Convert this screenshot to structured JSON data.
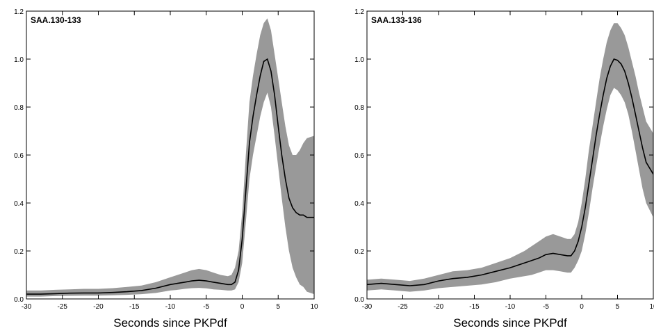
{
  "chart_data": [
    {
      "type": "line",
      "title": "SAA.130-133",
      "xlabel": "Seconds since PKPdf",
      "ylabel": "",
      "xlim": [
        -30,
        10
      ],
      "ylim": [
        0,
        1.2
      ],
      "xticks": [
        -30,
        -25,
        -20,
        -15,
        -10,
        -5,
        0,
        5,
        10
      ],
      "xtick_labels": [
        "-30",
        "-25",
        "-20",
        "-15",
        "-10",
        "-5",
        "0",
        "5",
        "10"
      ],
      "yticks": [
        0,
        0.2,
        0.4,
        0.6,
        0.8,
        1.0,
        1.2
      ],
      "ytick_labels": [
        "0.0",
        "0.2",
        "0.4",
        "0.6",
        "0.8",
        "1.0",
        "1.2"
      ],
      "grid": false,
      "colors": {
        "line": "#000000",
        "band": "#999999"
      },
      "series": [
        {
          "x": [
            -30,
            -28,
            -26,
            -24,
            -22,
            -20,
            -18,
            -16,
            -14,
            -12,
            -10,
            -9,
            -8,
            -7,
            -6,
            -5,
            -4,
            -3,
            -2,
            -1.5,
            -1,
            -0.5,
            0,
            0.5,
            1,
            1.5,
            2,
            2.5,
            3,
            3.5,
            4,
            4.5,
            5,
            5.5,
            6,
            6.5,
            7,
            7.5,
            8,
            8.5,
            9,
            10
          ],
          "y": [
            0.02,
            0.02,
            0.022,
            0.024,
            0.025,
            0.025,
            0.027,
            0.03,
            0.035,
            0.045,
            0.06,
            0.065,
            0.07,
            0.075,
            0.078,
            0.075,
            0.07,
            0.065,
            0.06,
            0.06,
            0.07,
            0.12,
            0.25,
            0.45,
            0.65,
            0.76,
            0.85,
            0.93,
            0.99,
            1.0,
            0.95,
            0.85,
            0.72,
            0.6,
            0.5,
            0.42,
            0.38,
            0.36,
            0.35,
            0.35,
            0.34,
            0.34
          ],
          "lower": [
            0.01,
            0.01,
            0.012,
            0.013,
            0.014,
            0.014,
            0.015,
            0.017,
            0.02,
            0.025,
            0.035,
            0.038,
            0.042,
            0.045,
            0.046,
            0.044,
            0.04,
            0.038,
            0.035,
            0.035,
            0.04,
            0.07,
            0.15,
            0.32,
            0.5,
            0.6,
            0.68,
            0.76,
            0.82,
            0.86,
            0.8,
            0.68,
            0.55,
            0.42,
            0.3,
            0.2,
            0.13,
            0.09,
            0.06,
            0.05,
            0.03,
            0.02
          ],
          "upper": [
            0.035,
            0.035,
            0.038,
            0.04,
            0.042,
            0.042,
            0.045,
            0.05,
            0.056,
            0.07,
            0.09,
            0.1,
            0.11,
            0.12,
            0.125,
            0.12,
            0.11,
            0.1,
            0.095,
            0.1,
            0.13,
            0.2,
            0.36,
            0.6,
            0.82,
            0.93,
            1.02,
            1.1,
            1.15,
            1.17,
            1.12,
            1.02,
            0.92,
            0.82,
            0.72,
            0.64,
            0.6,
            0.6,
            0.62,
            0.65,
            0.67,
            0.68
          ]
        }
      ]
    },
    {
      "type": "line",
      "title": "SAA.133-136",
      "xlabel": "Seconds since PKPdf",
      "ylabel": "",
      "xlim": [
        -30,
        10
      ],
      "ylim": [
        0,
        1.2
      ],
      "xticks": [
        -30,
        -25,
        -20,
        -15,
        -10,
        -5,
        0,
        5,
        10
      ],
      "xtick_labels": [
        "-30",
        "-25",
        "-20",
        "-15",
        "-10",
        "-5",
        "0",
        "5",
        "10"
      ],
      "yticks": [
        0,
        0.2,
        0.4,
        0.6,
        0.8,
        1.0,
        1.2
      ],
      "ytick_labels": [
        "0.0",
        "0.2",
        "0.4",
        "0.6",
        "0.8",
        "1.0",
        "1.2"
      ],
      "grid": false,
      "colors": {
        "line": "#000000",
        "band": "#999999"
      },
      "series": [
        {
          "x": [
            -30,
            -28,
            -26,
            -24,
            -22,
            -20,
            -18,
            -16,
            -14,
            -12,
            -10,
            -8,
            -7,
            -6,
            -5,
            -4,
            -3,
            -2,
            -1.5,
            -1,
            -0.5,
            0,
            0.5,
            1,
            1.5,
            2,
            2.5,
            3,
            3.5,
            4,
            4.5,
            5,
            5.5,
            6,
            6.5,
            7,
            7.5,
            8,
            8.5,
            9,
            10
          ],
          "y": [
            0.06,
            0.065,
            0.06,
            0.055,
            0.06,
            0.075,
            0.085,
            0.09,
            0.1,
            0.115,
            0.13,
            0.15,
            0.16,
            0.17,
            0.185,
            0.19,
            0.185,
            0.18,
            0.18,
            0.2,
            0.24,
            0.3,
            0.38,
            0.48,
            0.58,
            0.68,
            0.77,
            0.85,
            0.92,
            0.97,
            1.0,
            0.995,
            0.98,
            0.95,
            0.9,
            0.84,
            0.77,
            0.7,
            0.63,
            0.57,
            0.52
          ],
          "lower": [
            0.035,
            0.04,
            0.035,
            0.03,
            0.035,
            0.045,
            0.05,
            0.055,
            0.06,
            0.07,
            0.085,
            0.095,
            0.1,
            0.11,
            0.12,
            0.12,
            0.115,
            0.11,
            0.11,
            0.13,
            0.16,
            0.2,
            0.27,
            0.36,
            0.46,
            0.55,
            0.64,
            0.72,
            0.79,
            0.85,
            0.88,
            0.87,
            0.85,
            0.82,
            0.77,
            0.7,
            0.62,
            0.54,
            0.46,
            0.4,
            0.34
          ],
          "upper": [
            0.08,
            0.085,
            0.08,
            0.075,
            0.085,
            0.1,
            0.115,
            0.12,
            0.13,
            0.15,
            0.17,
            0.2,
            0.22,
            0.24,
            0.26,
            0.27,
            0.26,
            0.25,
            0.25,
            0.27,
            0.32,
            0.4,
            0.5,
            0.62,
            0.72,
            0.82,
            0.92,
            1.0,
            1.07,
            1.12,
            1.15,
            1.15,
            1.13,
            1.1,
            1.05,
            0.99,
            0.93,
            0.86,
            0.8,
            0.74,
            0.69
          ]
        }
      ]
    }
  ]
}
